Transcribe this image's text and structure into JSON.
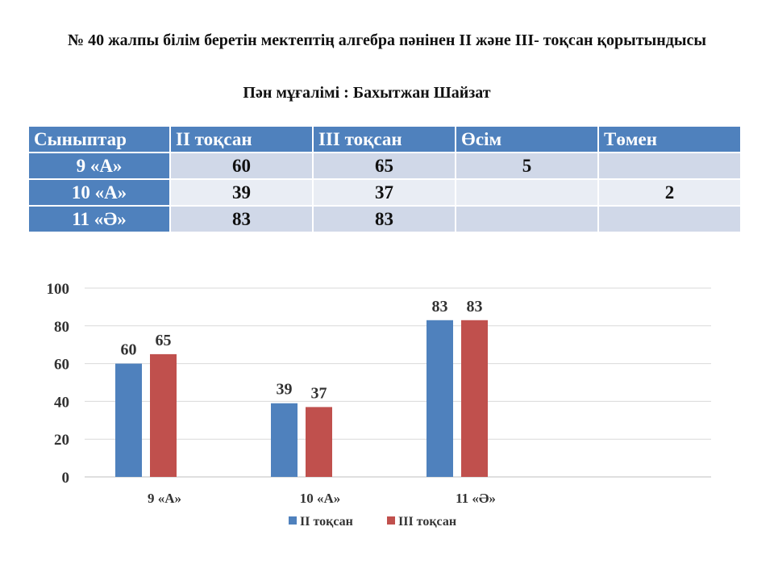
{
  "header": {
    "title": "№ 40 жалпы білім беретін мектептің алгебра пәнінен ІІ және ІІІ- тоқсан қорытындысы",
    "teacher": "Пән мұғалімі : Бахытжан Шайзат"
  },
  "table": {
    "columns": [
      "Сыныптар",
      "ІІ тоқсан",
      "ІІІ тоқсан",
      "Өсім",
      "Төмен"
    ],
    "rows": [
      {
        "class": "9 «А»",
        "q2": "60",
        "q3": "65",
        "growth": "5",
        "decline": ""
      },
      {
        "class": "10 «А»",
        "q2": "39",
        "q3": "37",
        "growth": "",
        "decline": "2"
      },
      {
        "class": "11 «Ә»",
        "q2": "83",
        "q3": "83",
        "growth": "",
        "decline": ""
      }
    ]
  },
  "chart_data": {
    "type": "bar",
    "title": "",
    "xlabel": "",
    "ylabel": "",
    "categories": [
      "9 «А»",
      "10 «А»",
      "11 «Ә»"
    ],
    "series": [
      {
        "name": "ІІ тоқсан",
        "values": [
          60,
          39,
          83
        ],
        "color": "#4f81bd"
      },
      {
        "name": "ІІІ тоқсан",
        "values": [
          65,
          37,
          83
        ],
        "color": "#c0504d"
      }
    ],
    "ylim": [
      0,
      100
    ],
    "yticks": [
      0,
      20,
      40,
      60,
      80,
      100
    ],
    "grid": true,
    "legend": "bottom"
  }
}
